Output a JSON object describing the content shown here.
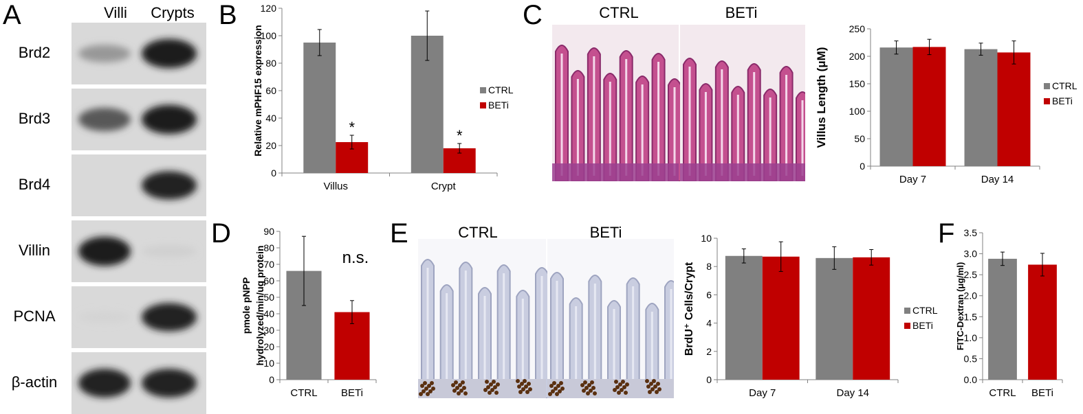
{
  "panels": {
    "A": "A",
    "B": "B",
    "C": "C",
    "D": "D",
    "E": "E",
    "F": "F"
  },
  "western_blot": {
    "columns": [
      "Villi",
      "Crypts"
    ],
    "rows": [
      {
        "label": "Brd2",
        "villi": 0.35,
        "crypts": 0.95
      },
      {
        "label": "Brd3",
        "villi": 0.65,
        "crypts": 0.95
      },
      {
        "label": "Brd4",
        "villi": 0.0,
        "crypts": 0.9
      },
      {
        "label": "Villin",
        "villi": 0.95,
        "crypts": 0.08
      },
      {
        "label": "PCNA",
        "villi": 0.06,
        "crypts": 0.9
      },
      {
        "label": "β-actin",
        "villi": 0.92,
        "crypts": 0.92
      }
    ]
  },
  "histology": {
    "C": {
      "labels": [
        "CTRL",
        "BETi"
      ],
      "stain": "H&E"
    },
    "E": {
      "labels": [
        "CTRL",
        "BETi"
      ],
      "stain": "BrdU"
    }
  },
  "colors": {
    "ctrl": "#808080",
    "beti": "#c00000"
  },
  "chart_data": [
    {
      "id": "B",
      "type": "bar",
      "categories": [
        "Villus",
        "Crypt"
      ],
      "series": [
        {
          "name": "CTRL",
          "values": [
            95,
            100
          ],
          "errors": [
            9.5,
            18
          ]
        },
        {
          "name": "BETi",
          "values": [
            22.5,
            18
          ],
          "errors": [
            5,
            3.5
          ]
        }
      ],
      "annotations": [
        "*",
        "*"
      ],
      "ylabel": "Relative mPHF15 expression",
      "xlabel": "",
      "ylim": [
        0,
        120
      ],
      "yticks": [
        0,
        20,
        40,
        60,
        80,
        100,
        120
      ],
      "legend": "right"
    },
    {
      "id": "C",
      "type": "bar",
      "categories": [
        "Day 7",
        "Day 14"
      ],
      "series": [
        {
          "name": "CTRL",
          "values": [
            216,
            213
          ],
          "errors": [
            12,
            11
          ]
        },
        {
          "name": "BETi",
          "values": [
            217,
            207
          ],
          "errors": [
            14,
            21
          ]
        }
      ],
      "ylabel": "Villus Length (μM)",
      "xlabel": "",
      "ylim": [
        0,
        250
      ],
      "yticks": [
        0,
        50,
        100,
        150,
        200,
        250
      ],
      "legend": "right"
    },
    {
      "id": "D",
      "type": "bar",
      "categories": [
        "CTRL",
        "BETi"
      ],
      "series": [
        {
          "values": [
            66,
            41
          ],
          "errors": [
            21,
            7
          ]
        }
      ],
      "annotation": "n.s.",
      "ylabel": "pmole pNPP hydrolyzed/min/ug protein",
      "xlabel": "",
      "ylim": [
        0,
        90
      ],
      "yticks": [
        0,
        10,
        20,
        30,
        40,
        50,
        60,
        70,
        80,
        90
      ]
    },
    {
      "id": "E",
      "type": "bar",
      "categories": [
        "Day 7",
        "Day 14"
      ],
      "series": [
        {
          "name": "CTRL",
          "values": [
            8.75,
            8.6
          ],
          "errors": [
            0.5,
            0.8
          ]
        },
        {
          "name": "BETi",
          "values": [
            8.7,
            8.65
          ],
          "errors": [
            1.05,
            0.55
          ]
        }
      ],
      "ylabel": "BrdU⁺ Cells/Crypt",
      "xlabel": "",
      "ylim": [
        0,
        10
      ],
      "yticks": [
        0,
        2,
        4,
        6,
        8,
        10
      ],
      "legend": "right"
    },
    {
      "id": "F",
      "type": "bar",
      "categories": [
        "CTRL",
        "BETi"
      ],
      "series": [
        {
          "values": [
            2.88,
            2.74
          ],
          "errors": [
            0.16,
            0.27
          ]
        }
      ],
      "ylabel": "FITC-Dextran (μg/ml)",
      "xlabel": "",
      "ylim": [
        0,
        3.5
      ],
      "yticks": [
        "0.0",
        "0.5",
        "1.0",
        "1.5",
        "2.0",
        "2.5",
        "3.0",
        "3.5"
      ]
    }
  ]
}
